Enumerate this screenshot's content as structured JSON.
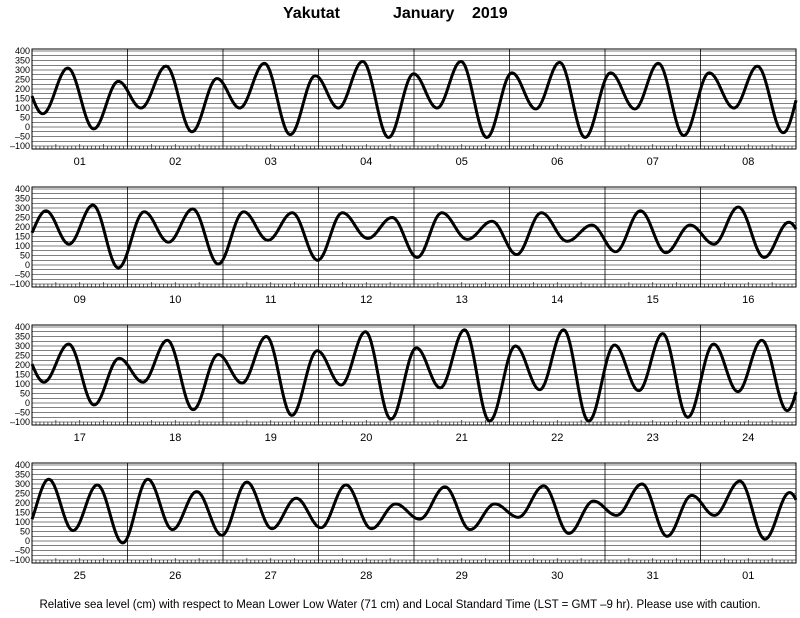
{
  "title": {
    "station": "Yakutat",
    "month": "January",
    "year": "2019"
  },
  "footer": "Relative sea level (cm) with respect to Mean Lower Low Water (71 cm) and Local Standard Time (LST = GMT –9 hr). Please use with caution.",
  "colors": {
    "curve": "#000000",
    "grid": "#000000",
    "background": "#ffffff"
  },
  "chart_data": [
    {
      "type": "line",
      "panel": 1,
      "xlabel": "",
      "ylabel": "",
      "day_labels": [
        "01",
        "02",
        "03",
        "04",
        "05",
        "06",
        "07",
        "08"
      ],
      "y_ticks": [
        400,
        350,
        300,
        250,
        200,
        150,
        100,
        50,
        0,
        -50,
        -100
      ],
      "ylim": [
        -100,
        400
      ],
      "tides": [
        {
          "day": "01",
          "hour": 2.7,
          "h": 70,
          "kind": "low"
        },
        {
          "day": "01",
          "hour": 9.0,
          "h": 310,
          "kind": "high"
        },
        {
          "day": "01",
          "hour": 15.5,
          "h": -10,
          "kind": "low"
        },
        {
          "day": "01",
          "hour": 21.7,
          "h": 240,
          "kind": "high"
        },
        {
          "day": "02",
          "hour": 3.4,
          "h": 100,
          "kind": "low"
        },
        {
          "day": "02",
          "hour": 9.7,
          "h": 320,
          "kind": "high"
        },
        {
          "day": "02",
          "hour": 16.2,
          "h": -25,
          "kind": "low"
        },
        {
          "day": "02",
          "hour": 22.5,
          "h": 255,
          "kind": "high"
        },
        {
          "day": "03",
          "hour": 4.2,
          "h": 100,
          "kind": "low"
        },
        {
          "day": "03",
          "hour": 10.4,
          "h": 335,
          "kind": "high"
        },
        {
          "day": "03",
          "hour": 16.9,
          "h": -40,
          "kind": "low"
        },
        {
          "day": "03",
          "hour": 23.2,
          "h": 270,
          "kind": "high"
        },
        {
          "day": "04",
          "hour": 5.0,
          "h": 100,
          "kind": "low"
        },
        {
          "day": "04",
          "hour": 11.1,
          "h": 345,
          "kind": "high"
        },
        {
          "day": "04",
          "hour": 17.6,
          "h": -55,
          "kind": "low"
        },
        {
          "day": "04",
          "hour": 23.9,
          "h": 280,
          "kind": "high"
        },
        {
          "day": "05",
          "hour": 5.8,
          "h": 100,
          "kind": "low"
        },
        {
          "day": "05",
          "hour": 11.8,
          "h": 345,
          "kind": "high"
        },
        {
          "day": "05",
          "hour": 18.3,
          "h": -55,
          "kind": "low"
        },
        {
          "day": "06",
          "hour": 0.6,
          "h": 285,
          "kind": "high"
        },
        {
          "day": "06",
          "hour": 6.6,
          "h": 95,
          "kind": "low"
        },
        {
          "day": "06",
          "hour": 12.6,
          "h": 340,
          "kind": "high"
        },
        {
          "day": "06",
          "hour": 19.0,
          "h": -55,
          "kind": "low"
        },
        {
          "day": "07",
          "hour": 1.4,
          "h": 285,
          "kind": "high"
        },
        {
          "day": "07",
          "hour": 7.5,
          "h": 95,
          "kind": "low"
        },
        {
          "day": "07",
          "hour": 13.4,
          "h": 335,
          "kind": "high"
        },
        {
          "day": "07",
          "hour": 19.8,
          "h": -45,
          "kind": "low"
        },
        {
          "day": "08",
          "hour": 2.2,
          "h": 285,
          "kind": "high"
        },
        {
          "day": "08",
          "hour": 8.4,
          "h": 100,
          "kind": "low"
        },
        {
          "day": "08",
          "hour": 14.3,
          "h": 320,
          "kind": "high"
        },
        {
          "day": "08",
          "hour": 20.8,
          "h": -30,
          "kind": "low"
        }
      ]
    },
    {
      "type": "line",
      "panel": 2,
      "xlabel": "",
      "ylabel": "",
      "day_labels": [
        "09",
        "10",
        "11",
        "12",
        "13",
        "14",
        "15",
        "16"
      ],
      "y_ticks": [
        400,
        350,
        300,
        250,
        200,
        150,
        100,
        50,
        0,
        -50,
        -100
      ],
      "ylim": [
        -100,
        400
      ],
      "tides": [
        {
          "day": "09",
          "hour": 3.5,
          "h": 285,
          "kind": "high"
        },
        {
          "day": "09",
          "hour": 9.3,
          "h": 110,
          "kind": "low"
        },
        {
          "day": "09",
          "hour": 15.3,
          "h": 315,
          "kind": "high"
        },
        {
          "day": "09",
          "hour": 21.7,
          "h": -15,
          "kind": "low"
        },
        {
          "day": "10",
          "hour": 4.2,
          "h": 280,
          "kind": "high"
        },
        {
          "day": "10",
          "hour": 10.3,
          "h": 120,
          "kind": "low"
        },
        {
          "day": "10",
          "hour": 16.4,
          "h": 295,
          "kind": "high"
        },
        {
          "day": "10",
          "hour": 22.8,
          "h": 5,
          "kind": "low"
        },
        {
          "day": "11",
          "hour": 5.2,
          "h": 280,
          "kind": "high"
        },
        {
          "day": "11",
          "hour": 11.3,
          "h": 130,
          "kind": "low"
        },
        {
          "day": "11",
          "hour": 17.4,
          "h": 275,
          "kind": "high"
        },
        {
          "day": "11",
          "hour": 23.8,
          "h": 25,
          "kind": "low"
        },
        {
          "day": "12",
          "hour": 6.0,
          "h": 275,
          "kind": "high"
        },
        {
          "day": "12",
          "hour": 12.4,
          "h": 140,
          "kind": "low"
        },
        {
          "day": "12",
          "hour": 18.5,
          "h": 250,
          "kind": "high"
        },
        {
          "day": "13",
          "hour": 0.8,
          "h": 40,
          "kind": "low"
        },
        {
          "day": "13",
          "hour": 7.0,
          "h": 275,
          "kind": "high"
        },
        {
          "day": "13",
          "hour": 13.4,
          "h": 135,
          "kind": "low"
        },
        {
          "day": "13",
          "hour": 19.6,
          "h": 230,
          "kind": "high"
        },
        {
          "day": "14",
          "hour": 1.8,
          "h": 55,
          "kind": "low"
        },
        {
          "day": "14",
          "hour": 8.0,
          "h": 275,
          "kind": "high"
        },
        {
          "day": "14",
          "hour": 14.5,
          "h": 125,
          "kind": "low"
        },
        {
          "day": "14",
          "hour": 20.7,
          "h": 210,
          "kind": "high"
        },
        {
          "day": "15",
          "hour": 2.7,
          "h": 70,
          "kind": "low"
        },
        {
          "day": "15",
          "hour": 8.9,
          "h": 285,
          "kind": "high"
        },
        {
          "day": "15",
          "hour": 15.3,
          "h": 65,
          "kind": "low"
        },
        {
          "day": "15",
          "hour": 21.4,
          "h": 210,
          "kind": "high"
        },
        {
          "day": "16",
          "hour": 3.4,
          "h": 110,
          "kind": "low"
        },
        {
          "day": "16",
          "hour": 9.5,
          "h": 305,
          "kind": "high"
        },
        {
          "day": "16",
          "hour": 16.0,
          "h": 40,
          "kind": "low"
        },
        {
          "day": "16",
          "hour": 22.2,
          "h": 225,
          "kind": "high"
        }
      ]
    },
    {
      "type": "line",
      "panel": 3,
      "xlabel": "",
      "ylabel": "",
      "day_labels": [
        "17",
        "18",
        "19",
        "20",
        "21",
        "22",
        "23",
        "24"
      ],
      "y_ticks": [
        400,
        350,
        300,
        250,
        200,
        150,
        100,
        50,
        0,
        -50,
        -100
      ],
      "ylim": [
        -100,
        400
      ],
      "tides": [
        {
          "day": "17",
          "hour": 3.0,
          "h": 110,
          "kind": "low"
        },
        {
          "day": "17",
          "hour": 9.2,
          "h": 310,
          "kind": "high"
        },
        {
          "day": "17",
          "hour": 15.6,
          "h": -10,
          "kind": "low"
        },
        {
          "day": "17",
          "hour": 21.9,
          "h": 235,
          "kind": "high"
        },
        {
          "day": "18",
          "hour": 3.9,
          "h": 110,
          "kind": "low"
        },
        {
          "day": "18",
          "hour": 10.0,
          "h": 330,
          "kind": "high"
        },
        {
          "day": "18",
          "hour": 16.5,
          "h": -35,
          "kind": "low"
        },
        {
          "day": "18",
          "hour": 22.8,
          "h": 255,
          "kind": "high"
        },
        {
          "day": "19",
          "hour": 4.8,
          "h": 105,
          "kind": "low"
        },
        {
          "day": "19",
          "hour": 10.9,
          "h": 350,
          "kind": "high"
        },
        {
          "day": "19",
          "hour": 17.3,
          "h": -65,
          "kind": "low"
        },
        {
          "day": "19",
          "hour": 23.7,
          "h": 275,
          "kind": "high"
        },
        {
          "day": "20",
          "hour": 5.7,
          "h": 95,
          "kind": "low"
        },
        {
          "day": "20",
          "hour": 11.8,
          "h": 375,
          "kind": "high"
        },
        {
          "day": "20",
          "hour": 18.2,
          "h": -85,
          "kind": "low"
        },
        {
          "day": "21",
          "hour": 0.6,
          "h": 290,
          "kind": "high"
        },
        {
          "day": "21",
          "hour": 6.6,
          "h": 80,
          "kind": "low"
        },
        {
          "day": "21",
          "hour": 12.7,
          "h": 385,
          "kind": "high"
        },
        {
          "day": "21",
          "hour": 19.0,
          "h": -95,
          "kind": "low"
        },
        {
          "day": "22",
          "hour": 1.5,
          "h": 300,
          "kind": "high"
        },
        {
          "day": "22",
          "hour": 7.6,
          "h": 70,
          "kind": "low"
        },
        {
          "day": "22",
          "hour": 13.6,
          "h": 385,
          "kind": "high"
        },
        {
          "day": "22",
          "hour": 19.9,
          "h": -95,
          "kind": "low"
        },
        {
          "day": "23",
          "hour": 2.4,
          "h": 305,
          "kind": "high"
        },
        {
          "day": "23",
          "hour": 8.5,
          "h": 65,
          "kind": "low"
        },
        {
          "day": "23",
          "hour": 14.5,
          "h": 365,
          "kind": "high"
        },
        {
          "day": "23",
          "hour": 20.8,
          "h": -75,
          "kind": "low"
        },
        {
          "day": "24",
          "hour": 3.3,
          "h": 310,
          "kind": "high"
        },
        {
          "day": "24",
          "hour": 9.4,
          "h": 60,
          "kind": "low"
        },
        {
          "day": "24",
          "hour": 15.4,
          "h": 330,
          "kind": "high"
        },
        {
          "day": "24",
          "hour": 21.8,
          "h": -40,
          "kind": "low"
        }
      ]
    },
    {
      "type": "line",
      "panel": 4,
      "xlabel": "",
      "ylabel": "",
      "day_labels": [
        "25",
        "26",
        "27",
        "28",
        "29",
        "30",
        "31",
        "01"
      ],
      "y_ticks": [
        400,
        350,
        300,
        250,
        200,
        150,
        100,
        50,
        0,
        -50,
        -100
      ],
      "ylim": [
        -100,
        400
      ],
      "tides": [
        {
          "day": "25",
          "hour": 4.2,
          "h": 325,
          "kind": "high"
        },
        {
          "day": "25",
          "hour": 10.3,
          "h": 55,
          "kind": "low"
        },
        {
          "day": "25",
          "hour": 16.4,
          "h": 295,
          "kind": "high"
        },
        {
          "day": "25",
          "hour": 22.8,
          "h": -10,
          "kind": "low"
        },
        {
          "day": "26",
          "hour": 5.1,
          "h": 325,
          "kind": "high"
        },
        {
          "day": "26",
          "hour": 11.3,
          "h": 60,
          "kind": "low"
        },
        {
          "day": "26",
          "hour": 17.4,
          "h": 260,
          "kind": "high"
        },
        {
          "day": "26",
          "hour": 23.7,
          "h": 30,
          "kind": "low"
        },
        {
          "day": "27",
          "hour": 6.0,
          "h": 310,
          "kind": "high"
        },
        {
          "day": "27",
          "hour": 12.3,
          "h": 65,
          "kind": "low"
        },
        {
          "day": "27",
          "hour": 18.4,
          "h": 225,
          "kind": "high"
        },
        {
          "day": "28",
          "hour": 0.6,
          "h": 70,
          "kind": "low"
        },
        {
          "day": "28",
          "hour": 6.9,
          "h": 295,
          "kind": "high"
        },
        {
          "day": "28",
          "hour": 13.3,
          "h": 65,
          "kind": "low"
        },
        {
          "day": "28",
          "hour": 19.4,
          "h": 195,
          "kind": "high"
        },
        {
          "day": "29",
          "hour": 1.4,
          "h": 115,
          "kind": "low"
        },
        {
          "day": "29",
          "hour": 7.8,
          "h": 285,
          "kind": "high"
        },
        {
          "day": "29",
          "hour": 14.1,
          "h": 60,
          "kind": "low"
        },
        {
          "day": "29",
          "hour": 20.3,
          "h": 195,
          "kind": "high"
        },
        {
          "day": "30",
          "hour": 2.2,
          "h": 125,
          "kind": "low"
        },
        {
          "day": "30",
          "hour": 8.6,
          "h": 290,
          "kind": "high"
        },
        {
          "day": "30",
          "hour": 14.9,
          "h": 40,
          "kind": "low"
        },
        {
          "day": "30",
          "hour": 21.1,
          "h": 210,
          "kind": "high"
        },
        {
          "day": "31",
          "hour": 2.9,
          "h": 135,
          "kind": "low"
        },
        {
          "day": "31",
          "hour": 9.3,
          "h": 300,
          "kind": "high"
        },
        {
          "day": "31",
          "hour": 15.6,
          "h": 25,
          "kind": "low"
        },
        {
          "day": "31",
          "hour": 21.8,
          "h": 240,
          "kind": "high"
        },
        {
          "day": "01",
          "hour": 3.5,
          "h": 135,
          "kind": "low"
        },
        {
          "day": "01",
          "hour": 9.9,
          "h": 315,
          "kind": "high"
        },
        {
          "day": "01",
          "hour": 16.2,
          "h": 10,
          "kind": "low"
        },
        {
          "day": "01",
          "hour": 22.4,
          "h": 255,
          "kind": "high"
        }
      ]
    }
  ]
}
